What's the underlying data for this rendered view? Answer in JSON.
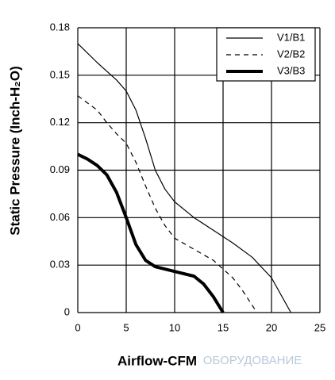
{
  "chart_data": {
    "type": "line",
    "y_label": "Static Pressure (Inch-H₂O)",
    "x_label": "Airflow-CFM",
    "watermark": "ОБОРУДОВАНИЕ",
    "xlim": [
      0,
      25
    ],
    "xticks": [
      0,
      5,
      10,
      15,
      20,
      25
    ],
    "ylim": [
      0,
      0.18
    ],
    "yticks": [
      {
        "value": 0,
        "label": "0"
      },
      {
        "value": 0.03,
        "label": "0.03"
      },
      {
        "value": 0.06,
        "label": "0.06"
      },
      {
        "value": 0.09,
        "label": "0.09"
      },
      {
        "value": 0.12,
        "label": "0.12"
      },
      {
        "value": 0.15,
        "label": "0.15"
      },
      {
        "value": 0.18,
        "label": "0.18"
      }
    ],
    "grid": true,
    "legend": "upper-right",
    "series": [
      {
        "name": "V1/B1",
        "color": "#000000",
        "dash": "solid",
        "width": 1.2,
        "x": [
          0,
          2,
          4,
          5,
          6,
          7,
          8,
          9,
          10,
          12,
          14,
          16,
          18,
          20,
          22
        ],
        "values": [
          0.17,
          0.158,
          0.147,
          0.14,
          0.128,
          0.11,
          0.09,
          0.078,
          0.07,
          0.06,
          0.052,
          0.044,
          0.035,
          0.022,
          0
        ]
      },
      {
        "name": "V2/B2",
        "color": "#000000",
        "dash": "dashed",
        "width": 1.2,
        "x": [
          0,
          2,
          3,
          4,
          5,
          6,
          7,
          8,
          9,
          10,
          12,
          14,
          16,
          17,
          18.5
        ],
        "values": [
          0.137,
          0.128,
          0.12,
          0.113,
          0.107,
          0.095,
          0.08,
          0.066,
          0.055,
          0.047,
          0.04,
          0.033,
          0.022,
          0.014,
          0
        ]
      },
      {
        "name": "V3/B3",
        "color": "#000000",
        "dash": "solid",
        "width": 4,
        "x": [
          0,
          1,
          2,
          3,
          4,
          5,
          6,
          7,
          8,
          10,
          12,
          13,
          14,
          15
        ],
        "values": [
          0.1,
          0.097,
          0.093,
          0.087,
          0.076,
          0.06,
          0.043,
          0.033,
          0.029,
          0.026,
          0.023,
          0.018,
          0.01,
          0
        ]
      }
    ]
  }
}
